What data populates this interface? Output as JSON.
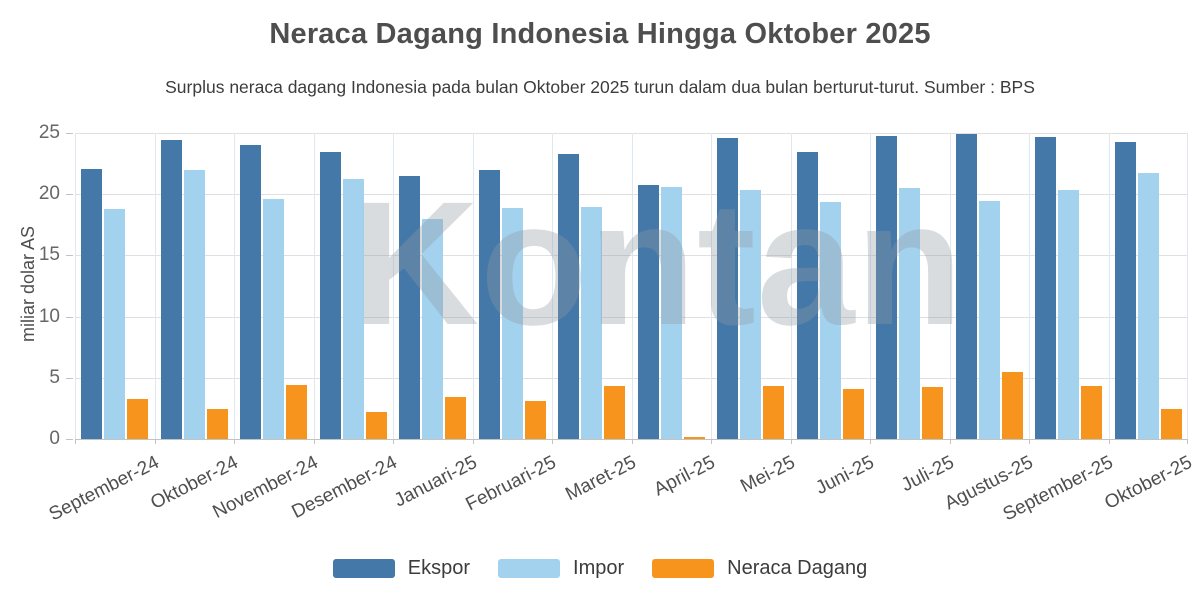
{
  "title": "Neraca Dagang Indonesia Hingga Oktober 2025",
  "subtitle": "Surplus neraca dagang Indonesia pada bulan Oktober 2025 turun dalam dua bulan berturut-turut. Sumber : BPS",
  "watermark": "Kontan",
  "chart_data": {
    "type": "bar",
    "categories": [
      "September-24",
      "Oktober-24",
      "November-24",
      "Desember-24",
      "Januari-25",
      "Februari-25",
      "Maret-25",
      "April-25",
      "Mei-25",
      "Juni-25",
      "Juli-25",
      "Agustus-25",
      "September-25",
      "Oktober-25"
    ],
    "series": [
      {
        "name": "Ekspor",
        "color": "#4478a8",
        "values": [
          22.08,
          24.41,
          24.01,
          23.46,
          21.45,
          21.98,
          23.25,
          20.74,
          24.61,
          23.44,
          24.75,
          24.96,
          24.68,
          24.25
        ]
      },
      {
        "name": "Impor",
        "color": "#a3d2ee",
        "values": [
          18.82,
          21.94,
          19.59,
          21.22,
          18.0,
          18.86,
          18.92,
          20.59,
          20.31,
          19.33,
          20.53,
          19.47,
          20.35,
          21.77
        ]
      },
      {
        "name": "Neraca Dagang",
        "color": "#f7941e",
        "values": [
          3.26,
          2.48,
          4.42,
          2.24,
          3.45,
          3.12,
          4.33,
          0.16,
          4.3,
          4.11,
          4.22,
          5.49,
          4.33,
          2.48
        ]
      }
    ],
    "ylabel": "miliar dolar AS",
    "xlabel": "",
    "ylim": [
      0,
      25
    ],
    "yticks": [
      0,
      5,
      10,
      15,
      20,
      25
    ],
    "grid": true,
    "legend_position": "bottom"
  }
}
